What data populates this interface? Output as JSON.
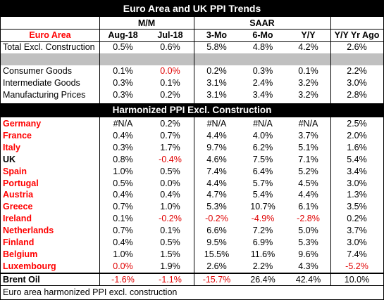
{
  "title": "Euro Area and UK PPI Trends",
  "subtitle": "Harmonized PPI Excl. Construction",
  "group_headers": {
    "mm": "M/M",
    "saar": "SAAR"
  },
  "col_headers": {
    "label": "Euro Area",
    "c1": "Aug-18",
    "c2": "Jul-18",
    "c3": "3-Mo",
    "c4": "6-Mo",
    "c5": "Y/Y",
    "c6": "Y/Y Yr Ago"
  },
  "euro_rows": [
    {
      "label": "Total Excl. Construction",
      "v": [
        "0.5%",
        "0.6%",
        "5.8%",
        "4.8%",
        "4.2%",
        "2.6%"
      ]
    },
    {
      "label": "Consumer Goods",
      "v": [
        "0.1%",
        "0.0%",
        "0.2%",
        "0.3%",
        "0.1%",
        "2.2%"
      ]
    },
    {
      "label": "Intermediate Goods",
      "v": [
        "0.3%",
        "0.1%",
        "3.1%",
        "2.4%",
        "3.2%",
        "3.0%"
      ]
    },
    {
      "label": "Manufacturing Prices",
      "v": [
        "0.3%",
        "0.2%",
        "3.1%",
        "3.4%",
        "3.2%",
        "2.8%"
      ]
    }
  ],
  "country_rows": [
    {
      "label": "Germany",
      "v": [
        "#N/A",
        "0.2%",
        "#N/A",
        "#N/A",
        "#N/A",
        "2.5%"
      ]
    },
    {
      "label": "France",
      "v": [
        "0.4%",
        "0.7%",
        "4.4%",
        "4.0%",
        "3.7%",
        "2.0%"
      ]
    },
    {
      "label": "Italy",
      "v": [
        "0.3%",
        "1.7%",
        "9.7%",
        "6.2%",
        "5.1%",
        "1.6%"
      ]
    },
    {
      "label": "UK",
      "v": [
        "0.8%",
        "-0.4%",
        "4.6%",
        "7.5%",
        "7.1%",
        "5.4%"
      ]
    },
    {
      "label": "Spain",
      "v": [
        "1.0%",
        "0.5%",
        "7.4%",
        "6.4%",
        "5.2%",
        "3.4%"
      ]
    },
    {
      "label": "Portugal",
      "v": [
        "0.5%",
        "0.0%",
        "4.4%",
        "5.7%",
        "4.5%",
        "3.0%"
      ]
    },
    {
      "label": "Austria",
      "v": [
        "0.4%",
        "0.4%",
        "4.7%",
        "5.4%",
        "4.4%",
        "1.3%"
      ]
    },
    {
      "label": "Greece",
      "v": [
        "0.7%",
        "1.0%",
        "5.3%",
        "10.7%",
        "6.1%",
        "3.5%"
      ]
    },
    {
      "label": "Ireland",
      "v": [
        "0.1%",
        "-0.2%",
        "-0.2%",
        "-4.9%",
        "-2.8%",
        "0.2%"
      ]
    },
    {
      "label": "Netherlands",
      "v": [
        "0.7%",
        "0.1%",
        "6.6%",
        "7.2%",
        "5.0%",
        "3.7%"
      ]
    },
    {
      "label": "Finland",
      "v": [
        "0.4%",
        "0.5%",
        "9.5%",
        "6.9%",
        "5.3%",
        "3.0%"
      ]
    },
    {
      "label": "Belgium",
      "v": [
        "1.0%",
        "1.5%",
        "15.5%",
        "11.6%",
        "9.6%",
        "7.4%"
      ]
    },
    {
      "label": "Luxembourg",
      "v": [
        "0.0%",
        "1.9%",
        "2.6%",
        "2.2%",
        "4.3%",
        "-5.2%"
      ]
    }
  ],
  "brent_row": {
    "label": "Brent Oil",
    "v": [
      "-1.6%",
      "-1.1%",
      "-15.7%",
      "26.4%",
      "42.4%",
      "10.0%"
    ]
  },
  "footnote": "Euro area harmonized PPI excl. construction",
  "colors": {
    "header_bg": "#000000",
    "header_fg": "#ffffff",
    "country_label": "#ff0000",
    "negative": "#ff0000",
    "gray_band": "#c0c0c0"
  }
}
